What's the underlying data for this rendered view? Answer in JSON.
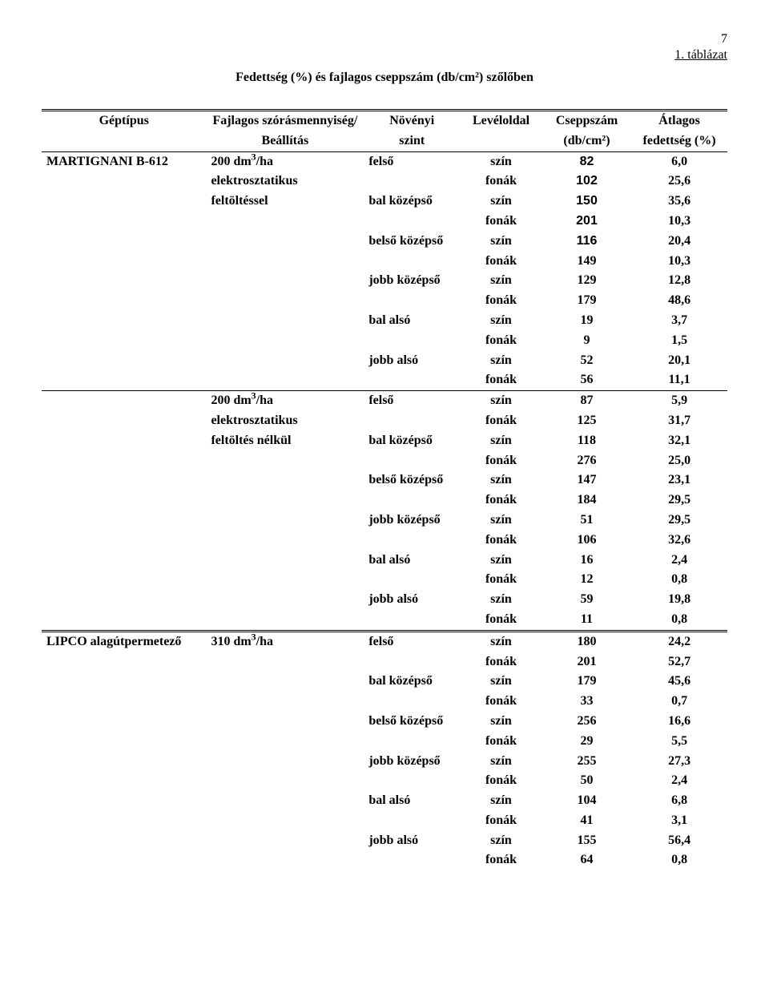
{
  "pageNumber": "7",
  "tableLabel": "1. táblázat",
  "caption": "Fedettség (%) és fajlagos cseppszám (db/cm²) szőlőben",
  "headers": {
    "machineType": "Géptípus",
    "spray1": "Fajlagos szórásmennyiség/",
    "spray2": "Beállítás",
    "plant1": "Növényi",
    "plant2": "szint",
    "side": "Levéloldal",
    "drop1": "Cseppszám",
    "drop2": "(db/cm²)",
    "cov1": "Átlagos",
    "cov2": "fedettség (%)"
  },
  "groups": [
    {
      "machine": "MARTIGNANI B-612",
      "blocks": [
        {
          "dose_html": "200 dm<sup>3</sup>/ha",
          "lines": [
            "elektrosztatikus",
            "feltöltéssel"
          ],
          "rows": [
            [
              "felső",
              "szín",
              "82",
              "6,0",
              "arial"
            ],
            [
              "",
              "fonák",
              "102",
              "25,6",
              "arial"
            ],
            [
              "bal középső",
              "szín",
              "150",
              "35,6",
              "arial"
            ],
            [
              "",
              "fonák",
              "201",
              "10,3",
              "arial"
            ],
            [
              "belső középső",
              "szín",
              "116",
              "20,4",
              "arial"
            ],
            [
              "",
              "fonák",
              "149",
              "10,3",
              ""
            ],
            [
              "jobb középső",
              "szín",
              "129",
              "12,8",
              ""
            ],
            [
              "",
              "fonák",
              "179",
              "48,6",
              ""
            ],
            [
              "bal alsó",
              "szín",
              "19",
              "3,7",
              ""
            ],
            [
              "",
              "fonák",
              "9",
              "1,5",
              ""
            ],
            [
              "jobb alsó",
              "szín",
              "52",
              "20,1",
              ""
            ],
            [
              "",
              "fonák",
              "56",
              "11,1",
              ""
            ]
          ]
        },
        {
          "dose_html": "200 dm<sup>3</sup>/ha",
          "lines": [
            "elektrosztatikus",
            "feltöltés nélkül"
          ],
          "rows": [
            [
              "felső",
              "szín",
              "87",
              "5,9",
              ""
            ],
            [
              "",
              "fonák",
              "125",
              "31,7",
              ""
            ],
            [
              "bal középső",
              "szín",
              "118",
              "32,1",
              ""
            ],
            [
              "",
              "fonák",
              "276",
              "25,0",
              ""
            ],
            [
              "belső középső",
              "szín",
              "147",
              "23,1",
              ""
            ],
            [
              "",
              "fonák",
              "184",
              "29,5",
              ""
            ],
            [
              "jobb középső",
              "szín",
              "51",
              "29,5",
              ""
            ],
            [
              "",
              "fonák",
              "106",
              "32,6",
              ""
            ],
            [
              "bal alsó",
              "szín",
              "16",
              "2,4",
              ""
            ],
            [
              "",
              "fonák",
              "12",
              "0,8",
              ""
            ],
            [
              "jobb alsó",
              "szín",
              "59",
              "19,8",
              ""
            ],
            [
              "",
              "fonák",
              "11",
              "0,8",
              ""
            ]
          ]
        }
      ]
    },
    {
      "machine": "LIPCO alagútpermetező",
      "blocks": [
        {
          "dose_html": "310 dm<sup>3</sup>/ha",
          "lines": [],
          "rows": [
            [
              "felső",
              "szín",
              "180",
              "24,2",
              ""
            ],
            [
              "",
              "fonák",
              "201",
              "52,7",
              ""
            ],
            [
              "bal középső",
              "szín",
              "179",
              "45,6",
              ""
            ],
            [
              "",
              "fonák",
              "33",
              "0,7",
              ""
            ],
            [
              "belső középső",
              "szín",
              "256",
              "16,6",
              ""
            ],
            [
              "",
              "fonák",
              "29",
              "5,5",
              ""
            ],
            [
              "jobb középső",
              "szín",
              "255",
              "27,3",
              ""
            ],
            [
              "",
              "fonák",
              "50",
              "2,4",
              ""
            ],
            [
              "bal alsó",
              "szín",
              "104",
              "6,8",
              ""
            ],
            [
              "",
              "fonák",
              "41",
              "3,1",
              ""
            ],
            [
              "jobb alsó",
              "szín",
              "155",
              "56,4",
              ""
            ],
            [
              "",
              "fonák",
              "64",
              "0,8",
              ""
            ]
          ]
        }
      ]
    }
  ]
}
